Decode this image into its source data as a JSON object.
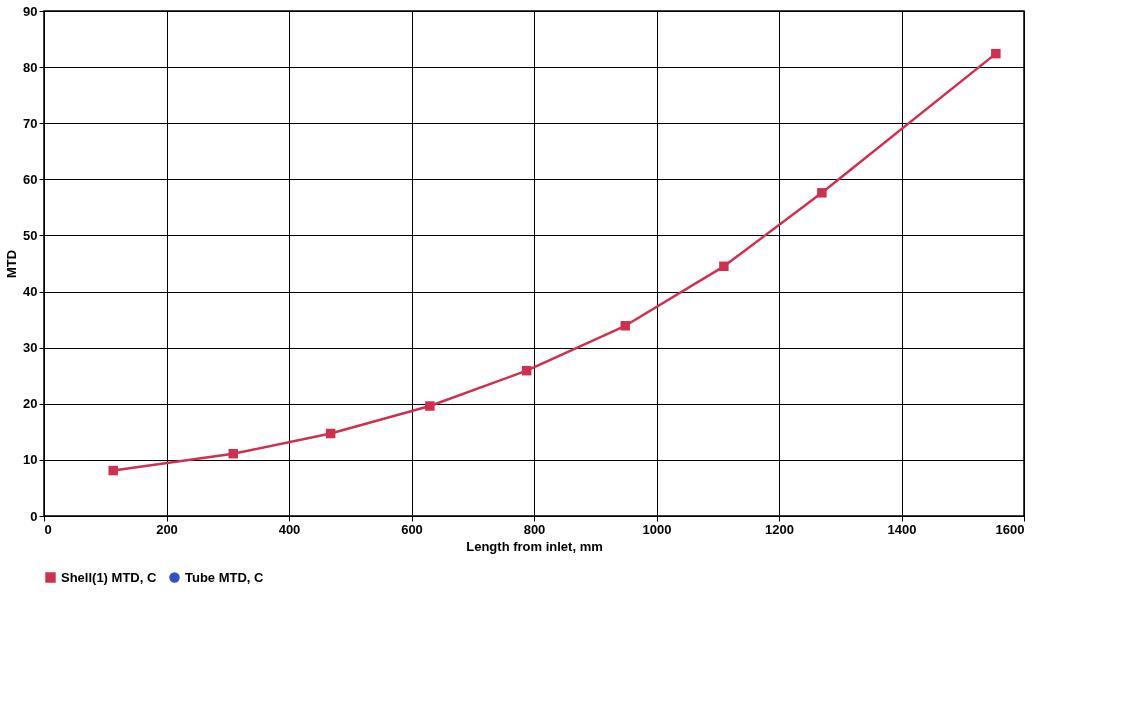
{
  "chart_data": {
    "type": "line",
    "xlabel": "Length from inlet, mm",
    "ylabel": "MTD",
    "x": [
      113,
      309,
      468,
      630,
      788,
      949,
      1110,
      1270,
      1554
    ],
    "series": [
      {
        "name": "Shell(1) MTD, C",
        "color": "#d0304f",
        "marker": "square",
        "values": [
          8.1,
          11.1,
          14.7,
          19.6,
          25.9,
          33.9,
          44.5,
          57.6,
          82.4
        ]
      },
      {
        "name": "Tube MTD, C",
        "color": "#3050c0",
        "marker": "circle",
        "values": [
          null,
          null,
          null,
          null,
          null,
          null,
          null,
          null,
          null
        ]
      }
    ],
    "xlim": [
      0,
      1600
    ],
    "xticks": [
      0,
      200,
      400,
      600,
      800,
      1000,
      1200,
      1400,
      1600
    ],
    "ylim": [
      0,
      90
    ],
    "yticks": [
      0,
      10,
      20,
      30,
      40,
      50,
      60,
      70,
      80,
      90
    ],
    "grid": true,
    "legend": "bottom",
    "line_style": "solid"
  }
}
